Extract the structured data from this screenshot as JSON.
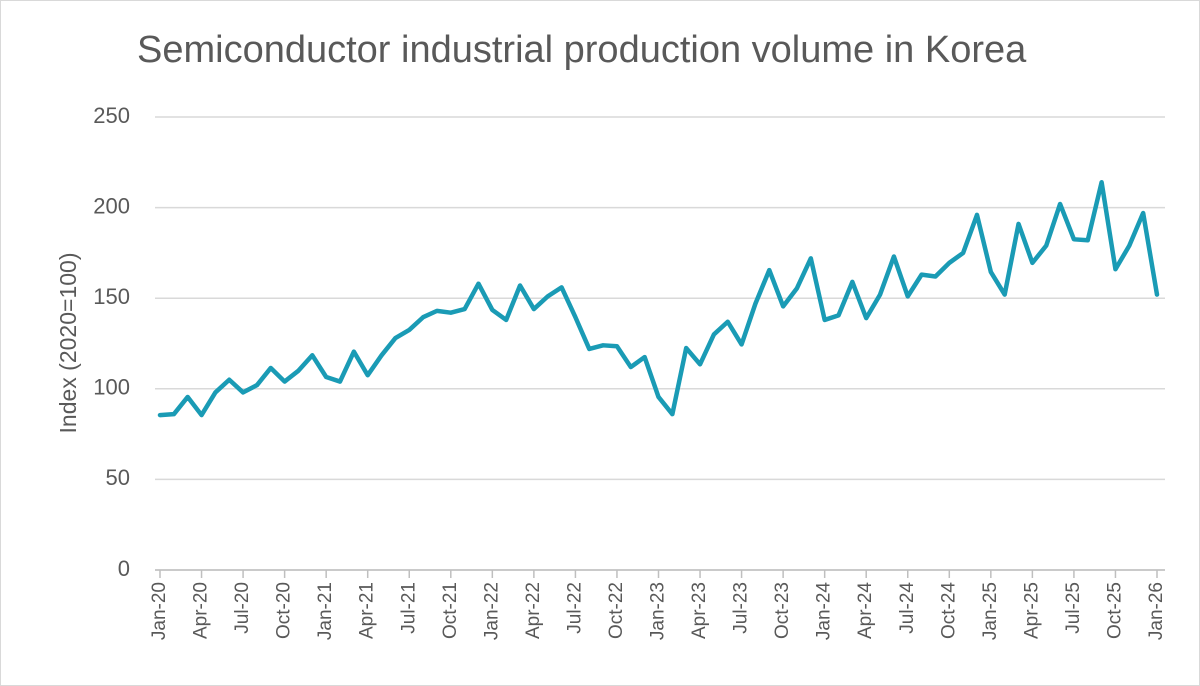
{
  "chart_data": {
    "type": "line",
    "title": "Semiconductor industrial production volume in Korea",
    "y_label": "Index (2020=100)",
    "categories": [
      "Jan-20",
      null,
      null,
      "Apr-20",
      null,
      null,
      "Jul-20",
      null,
      null,
      "Oct-20",
      null,
      null,
      "Jan-21",
      null,
      null,
      "Apr-21",
      null,
      null,
      "Jul-21",
      null,
      null,
      "Oct-21",
      null,
      null,
      "Jan-22",
      null,
      null,
      "Apr-22",
      null,
      null,
      "Jul-22",
      null,
      null,
      "Oct-22",
      null,
      null,
      "Jan-23",
      null,
      null,
      "Apr-23",
      null,
      null,
      "Jul-23",
      null,
      null,
      "Oct-23",
      null,
      null,
      "Jan-24",
      null,
      null,
      "Apr-24",
      null,
      null,
      "Jul-24",
      null,
      null,
      "Oct-24",
      null,
      null,
      "Jan-25",
      null,
      null,
      "Apr-25",
      null,
      null,
      "Jul-25",
      null,
      null,
      "Oct-25",
      null,
      null,
      "Jan-26"
    ],
    "series": [
      {
        "name": "Index",
        "color": "#1a9bb5",
        "values": [
          85.5,
          86,
          95.5,
          85.5,
          98,
          105,
          98,
          102,
          111.5,
          104,
          110,
          118.5,
          106.5,
          104,
          120.5,
          107.5,
          118.5,
          128,
          132.5,
          139.5,
          143,
          142,
          144,
          158,
          143.5,
          138,
          157,
          144,
          151,
          156,
          139.5,
          122,
          124,
          123.5,
          112,
          117.5,
          95.5,
          86,
          122.5,
          113.5,
          130,
          137,
          124.5,
          147,
          165.5,
          145.5,
          155.5,
          172,
          138,
          140.5,
          159,
          139,
          152,
          173,
          151,
          163,
          162,
          169.5,
          175,
          196,
          164.5,
          152,
          191,
          169.5,
          179,
          202,
          182.5,
          182,
          214,
          166,
          179,
          197,
          152
        ]
      }
    ],
    "ylim": [
      0,
      250
    ],
    "yticks": [
      0,
      50,
      100,
      150,
      200,
      250
    ],
    "grid": true
  }
}
